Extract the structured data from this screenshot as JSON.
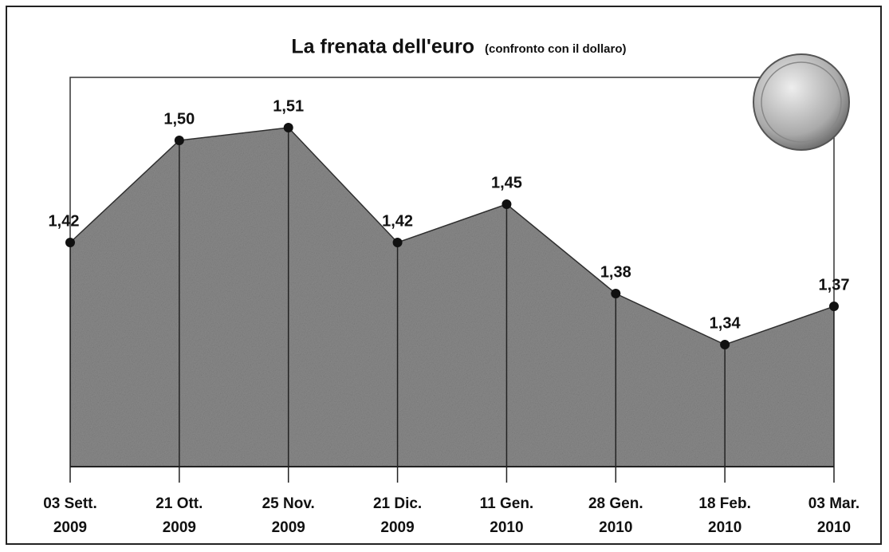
{
  "chart_data": {
    "type": "area",
    "title": "La frenata dell'euro",
    "subtitle": "(confronto con il dollaro)",
    "categories": [
      [
        "03 Sett.",
        "2009"
      ],
      [
        "21 Ott.",
        "2009"
      ],
      [
        "25 Nov.",
        "2009"
      ],
      [
        "21 Dic.",
        "2009"
      ],
      [
        "11 Gen.",
        "2010"
      ],
      [
        "28 Gen.",
        "2010"
      ],
      [
        "18 Feb.",
        "2010"
      ],
      [
        "03 Mar.",
        "2010"
      ]
    ],
    "values": [
      1.42,
      1.5,
      1.51,
      1.42,
      1.45,
      1.38,
      1.34,
      1.37
    ],
    "value_labels": [
      "1,42",
      "1,50",
      "1,51",
      "1,42",
      "1,45",
      "1,38",
      "1,34",
      "1,37"
    ],
    "color": "#8a8a8a"
  }
}
